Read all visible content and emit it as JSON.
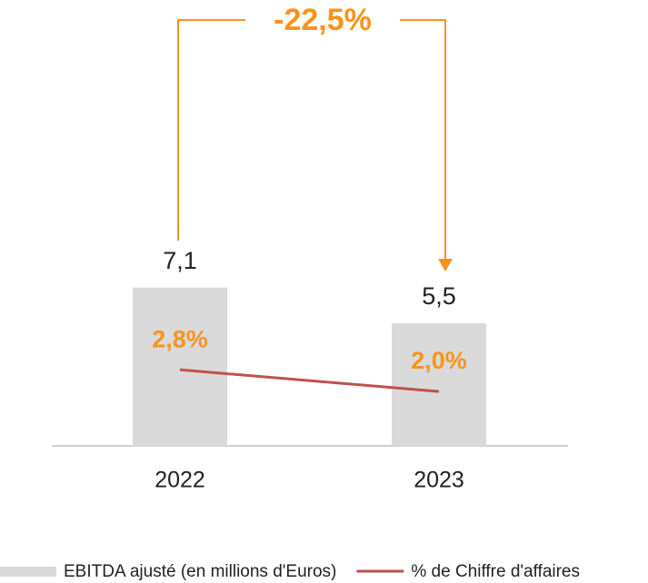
{
  "chart_data": {
    "type": "bar",
    "annotation": "-22,5%",
    "categories": [
      "2022",
      "2023"
    ],
    "ylim": [
      0,
      20
    ],
    "y2lim": [
      0,
      16.4
    ],
    "series": [
      {
        "name": "EBITDA ajusté (en millions d'Euros)",
        "type": "bar",
        "color": "#d9d9d9",
        "values": [
          7.1,
          5.5
        ],
        "value_labels": [
          "7,1",
          "5,5"
        ]
      },
      {
        "name": "% de Chiffre d'affaires",
        "type": "line",
        "axis": "y2",
        "color": "#c0504d",
        "values": [
          2.8,
          2.0
        ],
        "value_labels": [
          "2,8%",
          "2,0%"
        ],
        "label_color": "#f7941d"
      }
    ]
  }
}
